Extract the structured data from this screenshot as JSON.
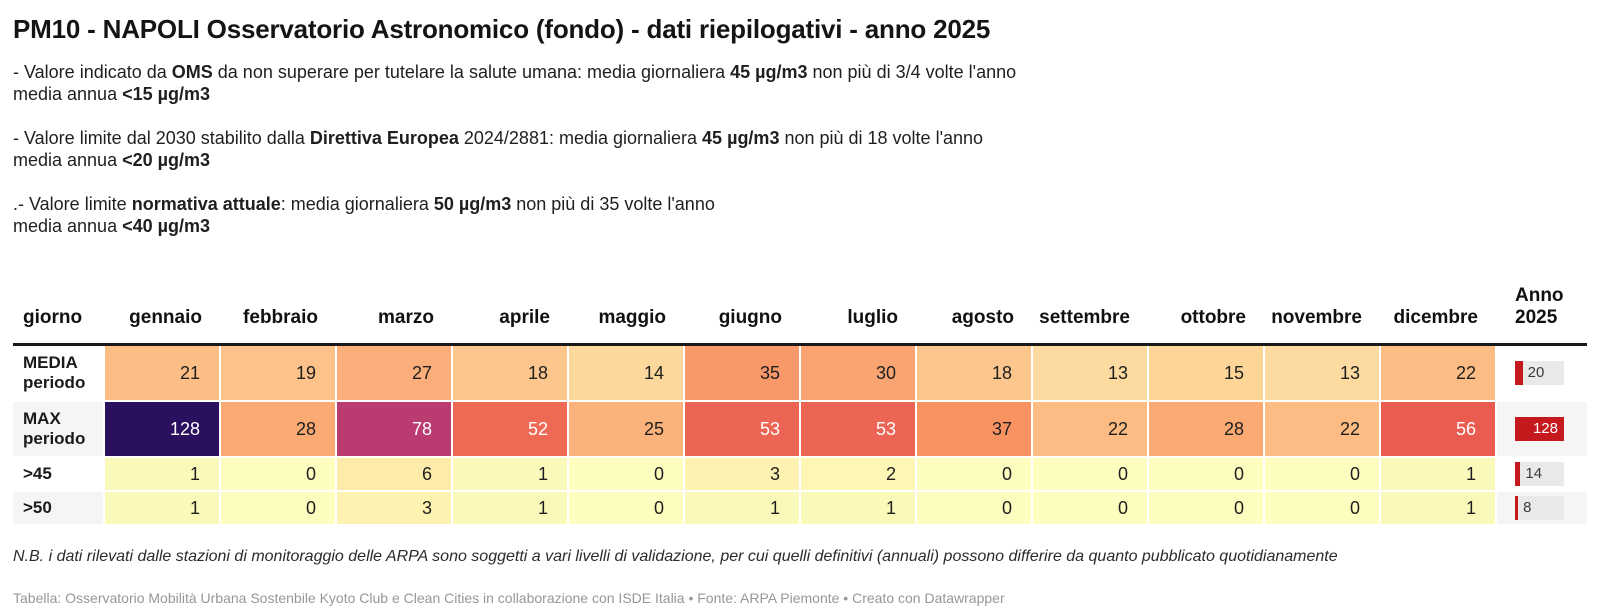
{
  "title": "PM10 - NAPOLI Osservatorio Astronomico (fondo) - dati riepilogativi - anno 2025",
  "description_blocks": [
    {
      "lines": [
        [
          [
            "- Valore indicato da ",
            false
          ],
          [
            "OMS",
            true
          ],
          [
            " da non superare per tutelare la salute umana: media giornaliera ",
            false
          ],
          [
            "45 µg/m3",
            true
          ],
          [
            " non più di 3/4 volte l'anno",
            false
          ]
        ],
        [
          [
            "media annua ",
            false
          ],
          [
            "<15 µg/m3",
            true
          ]
        ]
      ]
    },
    {
      "lines": [
        [
          [
            "- Valore limite dal 2030 stabilito dalla ",
            false
          ],
          [
            "Direttiva Europea",
            true
          ],
          [
            " 2024/2881: media giornaliera ",
            false
          ],
          [
            "45 µg/m3",
            true
          ],
          [
            " non più di 18 volte l'anno",
            false
          ]
        ],
        [
          [
            "media annua ",
            false
          ],
          [
            "<20 µg/m3",
            true
          ]
        ]
      ]
    },
    {
      "lines": [
        [
          [
            ".- Valore limite ",
            false
          ],
          [
            "normativa attuale",
            true
          ],
          [
            ": media giornaliera ",
            false
          ],
          [
            "50 µg/m3",
            true
          ],
          [
            " non più di 35 volte l'anno",
            false
          ]
        ],
        [
          [
            "media annua ",
            false
          ],
          [
            "<40 µg/m3",
            true
          ]
        ]
      ]
    }
  ],
  "chart_data": {
    "type": "table",
    "title": "PM10 - NAPOLI Osservatorio Astronomico (fondo) - dati riepilogativi - anno 2025",
    "row_header_label": "giorno",
    "month_columns": [
      "gennaio",
      "febbraio",
      "marzo",
      "aprile",
      "maggio",
      "giugno",
      "luglio",
      "agosto",
      "settembre",
      "ottobre",
      "novembre",
      "dicembre"
    ],
    "annual_column_label": "Anno\n2025",
    "annual_axis_max": 128,
    "rows": [
      {
        "label": "MEDIA\nperiodo",
        "tall": true,
        "values": [
          21,
          19,
          27,
          18,
          14,
          35,
          30,
          18,
          13,
          15,
          13,
          22
        ],
        "cell_colors": [
          "#fcbe85",
          "#fcc289",
          "#fbae7a",
          "#fcc68c",
          "#fdd89c",
          "#f99869",
          "#faa472",
          "#fcc68c",
          "#fdda9f",
          "#fdd596",
          "#fdda9f",
          "#fcbc83"
        ],
        "annual_value": 20
      },
      {
        "label": "MAX\nperiodo",
        "tall": true,
        "values": [
          128,
          28,
          78,
          52,
          25,
          53,
          53,
          37,
          22,
          28,
          22,
          56
        ],
        "cell_colors": [
          "#2c1060",
          "#fbaa74",
          "#ba3a72",
          "#ef6a55",
          "#fbb27b",
          "#ec6453",
          "#ec6453",
          "#f99261",
          "#fcbc83",
          "#fbaa74",
          "#fcbc83",
          "#ea5c50"
        ],
        "annual_value": 128
      },
      {
        "label": ">45",
        "tall": false,
        "values": [
          1,
          0,
          6,
          1,
          0,
          3,
          2,
          0,
          0,
          0,
          0,
          1
        ],
        "cell_colors": [
          "#fbf9b9",
          "#fcfdbf",
          "#fdeca9",
          "#fbf9b9",
          "#fcfdbf",
          "#fdf2af",
          "#fdf6b4",
          "#fcfdbf",
          "#fcfdbf",
          "#fcfdbf",
          "#fcfdbf",
          "#fbf9b9"
        ],
        "annual_value": 14
      },
      {
        "label": ">50",
        "tall": false,
        "values": [
          1,
          0,
          3,
          1,
          0,
          1,
          1,
          0,
          0,
          0,
          0,
          1
        ],
        "cell_colors": [
          "#fbf9b9",
          "#fcfdbf",
          "#fdf2af",
          "#fbf9b9",
          "#fcfdbf",
          "#fbf9b9",
          "#fbf9b9",
          "#fcfdbf",
          "#fcfdbf",
          "#fcfdbf",
          "#fcfdbf",
          "#fbf9b9"
        ],
        "annual_value": 8
      }
    ]
  },
  "colors": {
    "annual_bar": "#c4191d",
    "annual_track": "#e9e9e9",
    "row_stripe": "#f5f5f5",
    "header_border": "#191919",
    "dark_text": "#1f1f1f",
    "light_text": "#ffffff"
  },
  "footnote": "N.B. i dati rilevati dalle stazioni di monitoraggio delle ARPA sono soggetti a vari livelli di validazione, per cui quelli definitivi (annuali) possono differire da quanto pubblicato quotidianamente",
  "credits": "Tabella: Osservatorio Mobilità Urbana Sostenbile Kyoto Club e Clean Cities in collaborazione con ISDE Italia • Fonte: ARPA Piemonte • Creato con Datawrapper"
}
